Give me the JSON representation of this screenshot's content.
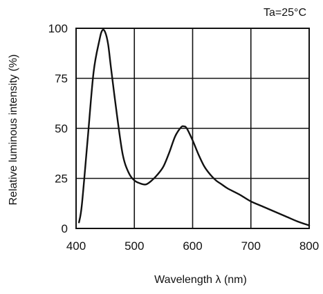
{
  "chart_data": {
    "type": "line",
    "title": "",
    "annotation": "Ta=25°C",
    "xlabel": "Wavelength λ (nm)",
    "ylabel": "Relative luminous intensity (%)",
    "xlim": [
      400,
      800
    ],
    "ylim": [
      0,
      100
    ],
    "x_ticks": [
      400,
      500,
      600,
      700,
      800
    ],
    "x_tick_labels": [
      "400",
      "500",
      "600",
      "700",
      "800"
    ],
    "y_ticks": [
      0,
      25,
      50,
      75,
      100
    ],
    "y_tick_labels": [
      "0",
      "25",
      "50",
      "75",
      "100"
    ],
    "grid": true,
    "legend": "none",
    "series": [
      {
        "x": [
          405,
          410,
          420,
          430,
          440,
          445,
          450,
          455,
          460,
          470,
          480,
          490,
          500,
          510,
          520,
          530,
          540,
          550,
          560,
          570,
          580,
          585,
          590,
          600,
          610,
          620,
          630,
          640,
          650,
          660,
          680,
          700,
          720,
          740,
          760,
          780,
          800
        ],
        "y": [
          3,
          12,
          45,
          78,
          94,
          99,
          98,
          92,
          80,
          57,
          37,
          28,
          24,
          22.5,
          22,
          24,
          27,
          31,
          38,
          46,
          50.5,
          51,
          50,
          44,
          37,
          31,
          27,
          24,
          22,
          20,
          17,
          13.5,
          11,
          8.5,
          6,
          3.5,
          1.5
        ]
      }
    ]
  }
}
